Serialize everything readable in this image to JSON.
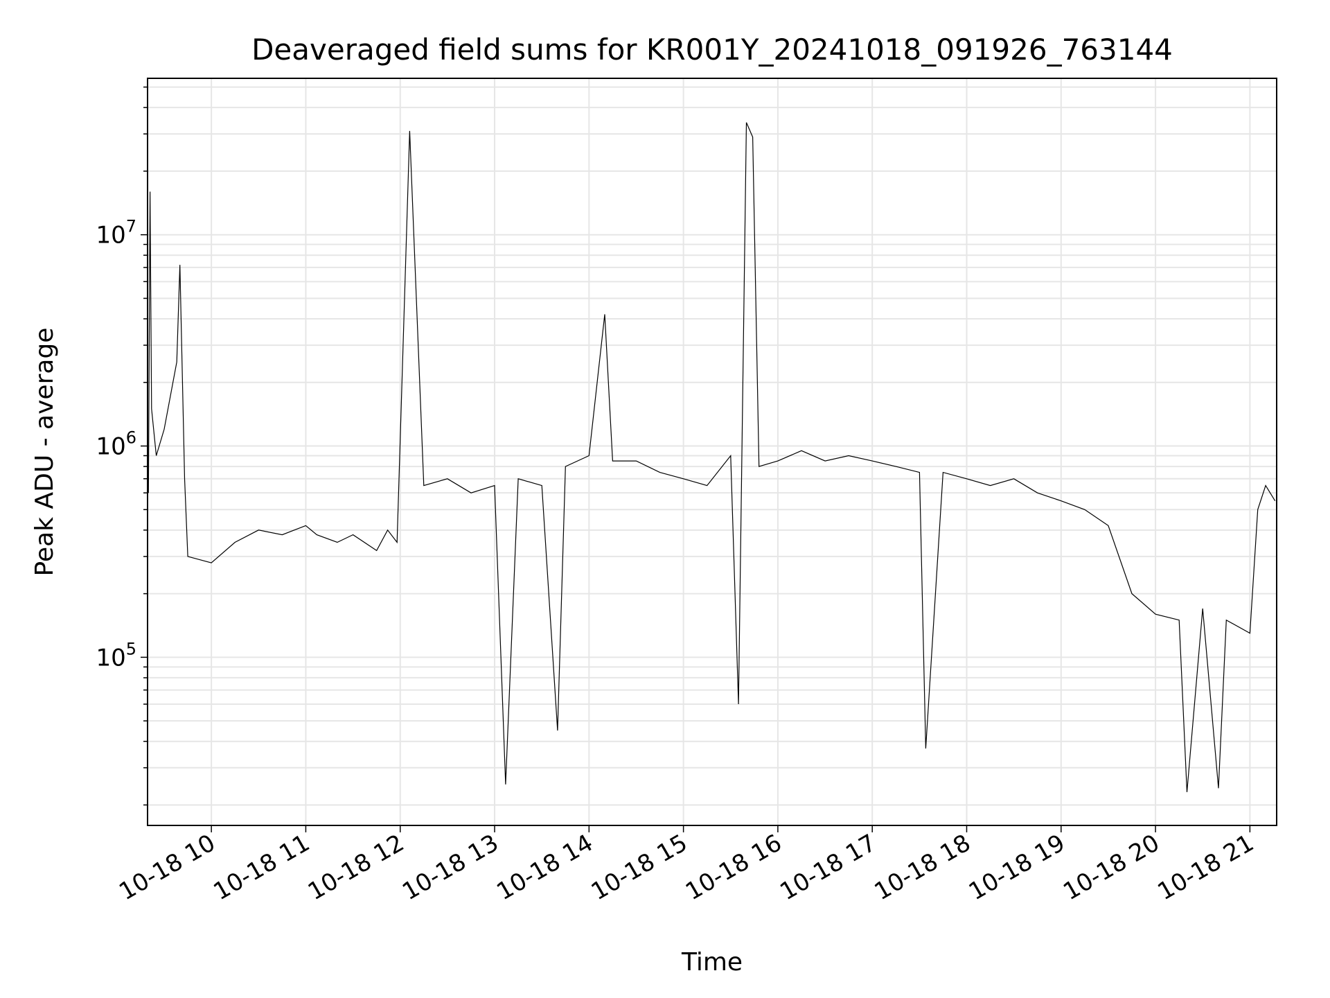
{
  "chart_data": {
    "type": "line",
    "title": "Deaveraged field sums for KR001Y_20241018_091926_763144",
    "xlabel": "Time",
    "ylabel": "Peak ADU - average",
    "xscale": "time",
    "yscale": "log",
    "xlim": [
      "2024-10-18T09:19:26",
      "2024-10-18T21:17:00"
    ],
    "ylim": [
      16000,
      55000000
    ],
    "grid": true,
    "line_color": "#000000",
    "grid_color": "#e6e6e6",
    "x_ticks": [
      {
        "label": "10-18 10",
        "value": "2024-10-18T10:00:00"
      },
      {
        "label": "10-18 11",
        "value": "2024-10-18T11:00:00"
      },
      {
        "label": "10-18 12",
        "value": "2024-10-18T12:00:00"
      },
      {
        "label": "10-18 13",
        "value": "2024-10-18T13:00:00"
      },
      {
        "label": "10-18 14",
        "value": "2024-10-18T14:00:00"
      },
      {
        "label": "10-18 15",
        "value": "2024-10-18T15:00:00"
      },
      {
        "label": "10-18 16",
        "value": "2024-10-18T16:00:00"
      },
      {
        "label": "10-18 17",
        "value": "2024-10-18T17:00:00"
      },
      {
        "label": "10-18 18",
        "value": "2024-10-18T18:00:00"
      },
      {
        "label": "10-18 19",
        "value": "2024-10-18T19:00:00"
      },
      {
        "label": "10-18 20",
        "value": "2024-10-18T20:00:00"
      },
      {
        "label": "10-18 21",
        "value": "2024-10-18T21:00:00"
      }
    ],
    "y_ticks": [
      {
        "base": "10",
        "exp": "5",
        "value": 100000
      },
      {
        "base": "10",
        "exp": "6",
        "value": 1000000
      },
      {
        "base": "10",
        "exp": "7",
        "value": 10000000
      }
    ],
    "series": [
      {
        "x": [
          "2024-10-18T09:20",
          "2024-10-18T09:21",
          "2024-10-18T09:22",
          "2024-10-18T09:25",
          "2024-10-18T09:30",
          "2024-10-18T09:38",
          "2024-10-18T09:40",
          "2024-10-18T09:43",
          "2024-10-18T09:45",
          "2024-10-18T10:00",
          "2024-10-18T10:15",
          "10-18 10:30",
          "2024-10-18T10:45",
          "2024-10-18T11:00",
          "2024-10-18T11:07",
          "2024-10-18T11:20",
          "2024-10-18T11:30",
          "2024-10-18T11:45",
          "2024-10-18T11:52",
          "2024-10-18T11:58",
          "2024-10-18T12:06",
          "2024-10-18T12:15",
          "2024-10-18T12:30",
          "2024-10-18T12:45",
          "2024-10-18T13:00",
          "2024-10-18T13:07",
          "2024-10-18T13:15",
          "2024-10-18T13:30",
          "2024-10-18T13:40",
          "2024-10-18T13:45",
          "2024-10-18T14:00",
          "2024-10-18T14:10",
          "2024-10-18T14:15",
          "2024-10-18T14:30",
          "2024-10-18T14:45",
          "2024-10-18T15:00",
          "2024-10-18T15:15",
          "2024-10-18T15:30",
          "2024-10-18T15:35",
          "2024-10-18T15:40",
          "2024-10-18T15:44",
          "2024-10-18T15:48",
          "2024-10-18T16:00",
          "2024-10-18T16:15",
          "2024-10-18T16:30",
          "2024-10-18T16:45",
          "2024-10-18T17:00",
          "2024-10-18T17:15",
          "2024-10-18T17:30",
          "2024-10-18T17:34",
          "2024-10-18T17:45",
          "2024-10-18T18:00",
          "2024-10-18T18:15",
          "2024-10-18T18:30",
          "2024-10-18T18:45",
          "2024-10-18T19:00",
          "2024-10-18T19:15",
          "2024-10-18T19:30",
          "2024-10-18T19:45",
          "2024-10-18T20:00",
          "2024-10-18T20:15",
          "2024-10-18T20:20",
          "2024-10-18T20:30",
          "2024-10-18T20:40",
          "2024-10-18T20:45",
          "2024-10-18T21:00",
          "2024-10-18T21:05",
          "2024-10-18T21:10",
          "2024-10-18T21:16"
        ],
        "y": [
          600000,
          16000000,
          1500000,
          900000,
          1200000,
          2500000,
          7200000,
          700000,
          300000,
          280000,
          350000,
          400000,
          380000,
          420000,
          380000,
          350000,
          380000,
          320000,
          400000,
          350000,
          31000000,
          650000,
          700000,
          600000,
          650000,
          25000,
          700000,
          650000,
          45000,
          800000,
          900000,
          4200000,
          850000,
          850000,
          750000,
          700000,
          650000,
          900000,
          60000,
          34000000,
          29000000,
          800000,
          850000,
          950000,
          850000,
          900000,
          850000,
          800000,
          750000,
          37000,
          750000,
          700000,
          650000,
          700000,
          600000,
          550000,
          500000,
          420000,
          200000,
          160000,
          150000,
          23000,
          170000,
          24000,
          150000,
          130000,
          500000,
          650000,
          550000
        ]
      }
    ]
  }
}
